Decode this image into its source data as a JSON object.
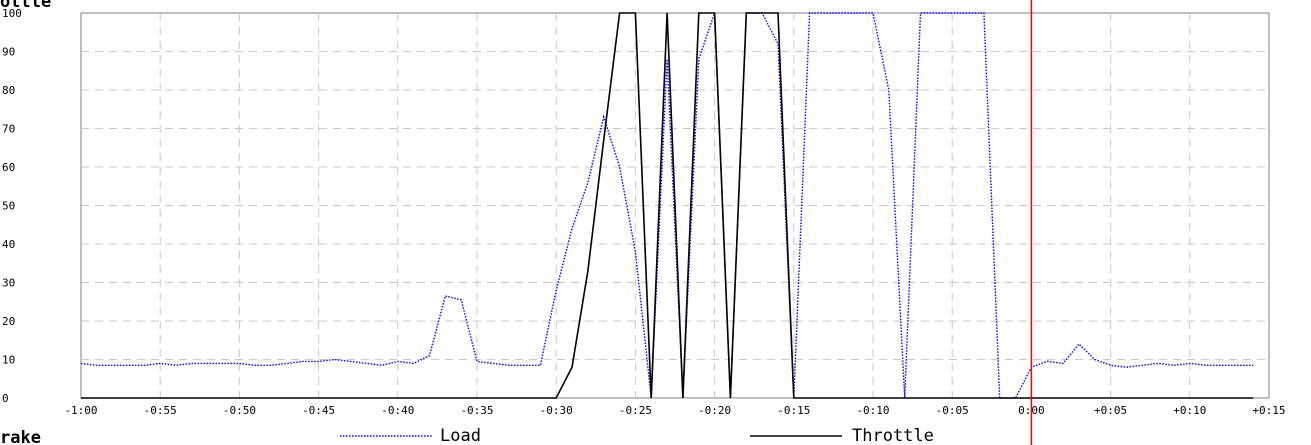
{
  "chart_data": {
    "type": "line",
    "title_fragment_top": "ottle",
    "title_fragment_bottom": "rake",
    "xlabel": "",
    "ylabel": "",
    "x_tick_labels": [
      "-1:00",
      "-0:55",
      "-0:50",
      "-0:45",
      "-0:40",
      "-0:35",
      "-0:30",
      "-0:25",
      "-0:20",
      "-0:15",
      "-0:10",
      "-0:05",
      "0:00",
      "+0:05",
      "+0:10",
      "+0:15"
    ],
    "x_ticks": [
      -60,
      -55,
      -50,
      -45,
      -40,
      -35,
      -30,
      -25,
      -20,
      -15,
      -10,
      -5,
      0,
      5,
      10,
      15
    ],
    "xlim": [
      -60,
      15
    ],
    "ylim": [
      0,
      100
    ],
    "y_ticks": [
      0,
      10,
      20,
      30,
      40,
      50,
      60,
      70,
      80,
      90,
      100
    ],
    "grid": true,
    "grid_color": "#c8c8c8",
    "marker_x": 0,
    "marker_color": "#ff0000",
    "legend_placement": "bottom",
    "series": [
      {
        "name": "Load",
        "color": "#0000ff",
        "style": "dotted",
        "x": [
          -60,
          -59,
          -58,
          -57,
          -56,
          -55,
          -54,
          -53,
          -52,
          -51,
          -50,
          -49,
          -48,
          -47,
          -46,
          -45,
          -44,
          -43,
          -42,
          -41,
          -40,
          -39,
          -38,
          -37,
          -36,
          -35,
          -34,
          -33,
          -32,
          -31,
          -30,
          -29,
          -28,
          -27,
          -26,
          -25,
          -24,
          -23,
          -22,
          -21,
          -20,
          -19,
          -18,
          -17,
          -16,
          -15,
          -14,
          -13,
          -12,
          -11,
          -10,
          -9,
          -8,
          -7,
          -6,
          -5,
          -4,
          -3,
          -2,
          -1,
          0,
          1,
          2,
          3,
          4,
          5,
          6,
          7,
          8,
          9,
          10,
          11,
          12,
          13,
          14
        ],
        "y": [
          9,
          8.5,
          8.5,
          8.5,
          8.5,
          9,
          8.5,
          9,
          9,
          9,
          9,
          8.5,
          8.5,
          9,
          9.5,
          9.5,
          10,
          9.5,
          9,
          8.5,
          9.5,
          9,
          11,
          26.5,
          25.5,
          9.5,
          9,
          8.5,
          8.5,
          8.5,
          28,
          44,
          56,
          73,
          60,
          38,
          0,
          88,
          0,
          88,
          100,
          0,
          100,
          100,
          92,
          0,
          100,
          100,
          100,
          100,
          100,
          80,
          0,
          100,
          100,
          100,
          100,
          100,
          0,
          0,
          8,
          9.5,
          9,
          14,
          10,
          8.5,
          8,
          8.5,
          9,
          8.5,
          9,
          8.5,
          8.5,
          8.5,
          8.5
        ]
      },
      {
        "name": "Throttle",
        "color": "#000000",
        "style": "solid",
        "x": [
          -60,
          -31,
          -30,
          -29,
          -28,
          -27,
          -26,
          -25,
          -24,
          -23,
          -22,
          -21,
          -20,
          -19,
          -18,
          -17,
          -16,
          -15,
          -14,
          -13,
          -12,
          -11,
          -10,
          -9,
          -8,
          -7,
          -6,
          -5,
          -4,
          -3,
          -2,
          -1,
          0,
          1,
          2,
          3,
          4,
          5,
          6,
          7,
          8,
          9,
          10,
          11,
          12,
          13,
          14
        ],
        "y": [
          0,
          0,
          0,
          8,
          33,
          67,
          100,
          100,
          0,
          100,
          0,
          100,
          100,
          0,
          100,
          100,
          100,
          0,
          0,
          0,
          0,
          0,
          0,
          0,
          0,
          0,
          0,
          0,
          0,
          0,
          0,
          0,
          0,
          0,
          0,
          0,
          0,
          0,
          0,
          0,
          0,
          0,
          0,
          0,
          0,
          0,
          0
        ]
      }
    ]
  }
}
